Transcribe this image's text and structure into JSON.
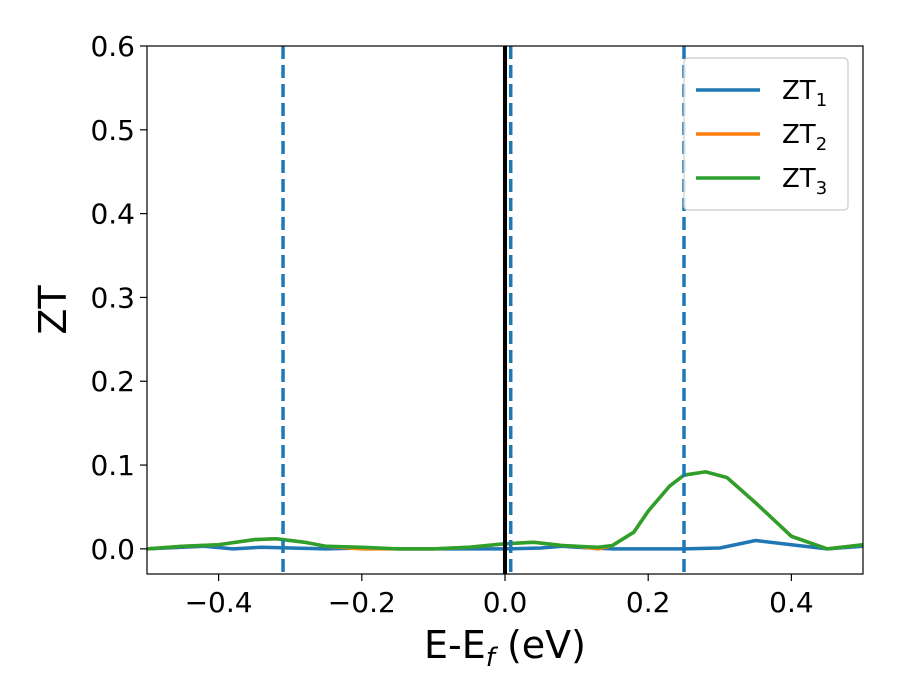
{
  "chart_data": {
    "type": "line",
    "title": "",
    "xlabel": "E-E",
    "xlabel_sub": "f",
    "xlabel_unit": " (eV)",
    "ylabel": "ZT",
    "xlim": [
      -0.5,
      0.5
    ],
    "ylim": [
      -0.03,
      0.6
    ],
    "xticks": [
      -0.4,
      -0.2,
      0.0,
      0.2,
      0.4
    ],
    "xtick_labels": [
      "−0.4",
      "−0.2",
      "0.0",
      "0.2",
      "0.4"
    ],
    "yticks": [
      0.0,
      0.1,
      0.2,
      0.3,
      0.4,
      0.5,
      0.6
    ],
    "ytick_labels": [
      "0.0",
      "0.1",
      "0.2",
      "0.3",
      "0.4",
      "0.5",
      "0.6"
    ],
    "grid": false,
    "legend_position": "top-right",
    "series": [
      {
        "name": "ZT",
        "name_sub": "1",
        "color": "#1f77b4",
        "x": [
          -0.5,
          -0.45,
          -0.42,
          -0.38,
          -0.34,
          -0.3,
          -0.25,
          -0.2,
          -0.15,
          -0.1,
          -0.05,
          0.0,
          0.05,
          0.08,
          0.1,
          0.15,
          0.2,
          0.25,
          0.3,
          0.35,
          0.4,
          0.45,
          0.5
        ],
        "y": [
          0.0,
          0.002,
          0.003,
          0.0,
          0.002,
          0.001,
          0.0,
          0.001,
          0.0,
          0.0,
          0.0,
          0.0,
          0.001,
          0.003,
          0.002,
          0.0,
          0.0,
          0.0,
          0.001,
          0.01,
          0.005,
          0.0,
          0.003
        ]
      },
      {
        "name": "ZT",
        "name_sub": "2",
        "color": "#ff7f0e",
        "x": [
          -0.5,
          -0.45,
          -0.4,
          -0.35,
          -0.32,
          -0.28,
          -0.25,
          -0.2,
          -0.15,
          -0.1,
          -0.05,
          0.0,
          0.04,
          0.08,
          0.1,
          0.13,
          0.15,
          0.18,
          0.2,
          0.23,
          0.25,
          0.28,
          0.31,
          0.35,
          0.4,
          0.45,
          0.5
        ],
        "y": [
          0.0,
          0.003,
          0.005,
          0.011,
          0.012,
          0.008,
          0.003,
          0.0,
          0.0,
          0.0,
          0.002,
          0.006,
          0.008,
          0.004,
          0.003,
          0.0,
          0.004,
          0.02,
          0.045,
          0.075,
          0.088,
          0.092,
          0.085,
          0.055,
          0.015,
          0.0,
          0.005
        ]
      },
      {
        "name": "ZT",
        "name_sub": "3",
        "color": "#2ca02c",
        "x": [
          -0.5,
          -0.45,
          -0.4,
          -0.35,
          -0.32,
          -0.28,
          -0.25,
          -0.2,
          -0.15,
          -0.1,
          -0.05,
          0.0,
          0.04,
          0.08,
          0.1,
          0.13,
          0.15,
          0.18,
          0.2,
          0.23,
          0.25,
          0.28,
          0.31,
          0.35,
          0.4,
          0.45,
          0.5
        ],
        "y": [
          0.0,
          0.003,
          0.005,
          0.011,
          0.012,
          0.008,
          0.003,
          0.002,
          0.0,
          0.0,
          0.002,
          0.006,
          0.008,
          0.004,
          0.003,
          0.002,
          0.004,
          0.02,
          0.045,
          0.075,
          0.088,
          0.092,
          0.085,
          0.055,
          0.015,
          0.0,
          0.005
        ]
      }
    ],
    "vertical_lines": [
      {
        "x": -0.31,
        "style": "dashed",
        "color": "#1f77b4"
      },
      {
        "x": 0.0,
        "style": "solid",
        "color": "#000000"
      },
      {
        "x": 0.008,
        "style": "dashed",
        "color": "#1f77b4"
      },
      {
        "x": 0.25,
        "style": "dashed",
        "color": "#1f77b4"
      }
    ]
  }
}
